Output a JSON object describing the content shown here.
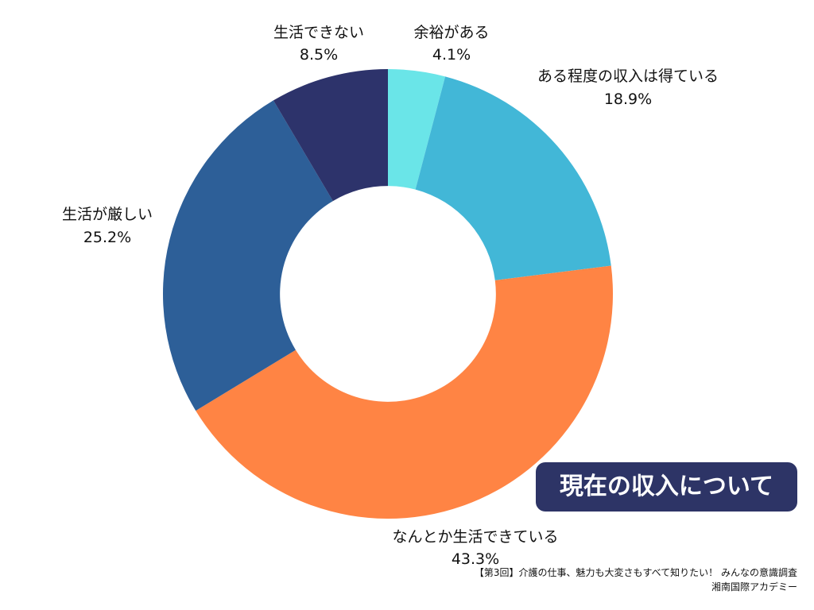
{
  "chart_data": {
    "type": "pie",
    "title": "現在の収入について",
    "start_angle_deg": 0,
    "inner_radius_ratio": 0.48,
    "slices": [
      {
        "label": "余裕がある",
        "value": 4.1,
        "value_label": "4.1%",
        "color": "#6ae5e8"
      },
      {
        "label": "ある程度の収入は得ている",
        "value": 18.9,
        "value_label": "18.9%",
        "color": "#42b7d7"
      },
      {
        "label": "なんとか生活できている",
        "value": 43.3,
        "value_label": "43.3%",
        "color": "#ff8444"
      },
      {
        "label": "生活が厳しい",
        "value": 25.2,
        "value_label": "25.2%",
        "color": "#2d5f98"
      },
      {
        "label": "生活できない",
        "value": 8.5,
        "value_label": "8.5%",
        "color": "#2d336b"
      }
    ]
  },
  "footer": {
    "source": "【第3回】介護の仕事、魅力も大変さもすべて知りたい！ みんなの意識調査",
    "organization": "湘南国際アカデミー"
  },
  "colors": {
    "badge_background": "#2d3466",
    "badge_text": "#ffffff"
  }
}
